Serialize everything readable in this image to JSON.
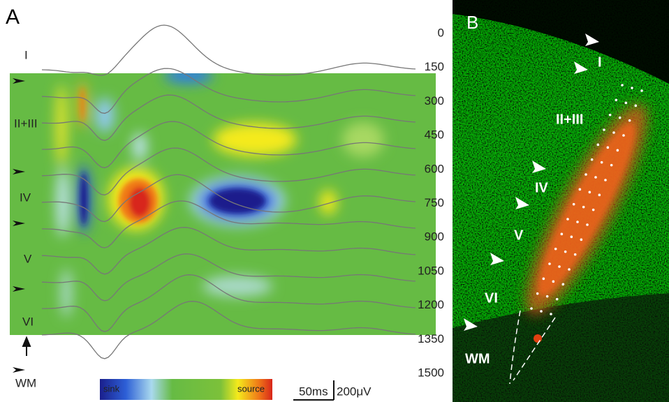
{
  "panel_a": {
    "label": "A",
    "layers": [
      "I",
      "II+III",
      "IV",
      "V",
      "VI",
      "WM"
    ],
    "depths": [
      0,
      150,
      300,
      450,
      600,
      750,
      900,
      1050,
      1200,
      1350,
      1500
    ],
    "colorbar": {
      "low": "sink",
      "high": "source"
    },
    "scalebar": {
      "time": "50ms",
      "voltage": "200μV"
    }
  },
  "panel_b": {
    "label": "B",
    "layers": [
      "I",
      "II+III",
      "IV",
      "V",
      "VI",
      "WM"
    ]
  }
}
